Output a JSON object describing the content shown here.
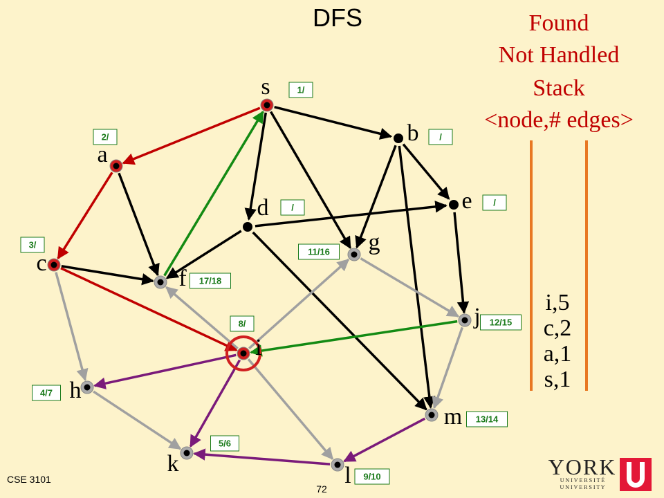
{
  "title": "DFS",
  "legend": {
    "found": "Found",
    "not_handled": "Not Handled",
    "stack": "Stack",
    "format": "<node,# edges>"
  },
  "stack": [
    "i,5",
    "c,2",
    "a,1",
    "s,1"
  ],
  "nodes": [
    {
      "label": "s",
      "time": "1/"
    },
    {
      "label": "a",
      "time": "2/"
    },
    {
      "label": "b",
      "time": "/"
    },
    {
      "label": "e",
      "time": "/"
    },
    {
      "label": "d",
      "time": "/"
    },
    {
      "label": "g",
      "time": "11/16"
    },
    {
      "label": "c",
      "time": "3/"
    },
    {
      "label": "f",
      "time": "17/18"
    },
    {
      "label": "j",
      "time": "12/15"
    },
    {
      "label": "i",
      "time": "8/"
    },
    {
      "label": "h",
      "time": "4/7"
    },
    {
      "label": "m",
      "time": "13/14"
    },
    {
      "label": "k",
      "time": "5/6"
    },
    {
      "label": "l",
      "time": "9/10"
    }
  ],
  "footer": {
    "course": "CSE 3101",
    "page": "72"
  },
  "logo": {
    "name": "YORK",
    "line1": "U N I V E R S I T É",
    "line2": "U N I V E R S I T Y"
  }
}
